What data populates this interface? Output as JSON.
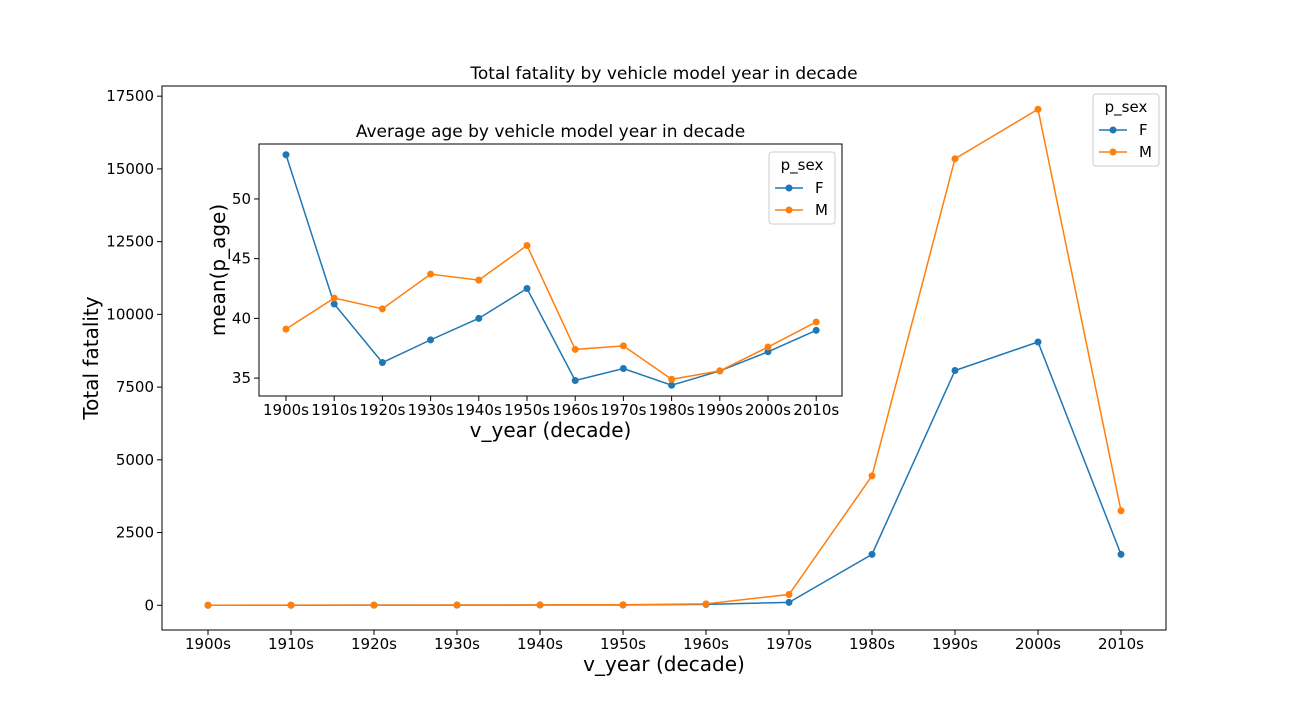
{
  "colors": {
    "F": "#1f77b4",
    "M": "#ff7f0e"
  },
  "chart_data": [
    {
      "type": "line",
      "title": "Total fatality by vehicle model year in decade",
      "xlabel": "v_year (decade)",
      "ylabel": "Total fatality",
      "categories": [
        "1900s",
        "1910s",
        "1920s",
        "1930s",
        "1940s",
        "1950s",
        "1960s",
        "1970s",
        "1980s",
        "1990s",
        "2000s",
        "2010s"
      ],
      "yticks": [
        0,
        2500,
        5000,
        7500,
        10000,
        12500,
        15000,
        17500
      ],
      "ylim": [
        -850,
        17850
      ],
      "legend": {
        "title": "p_sex",
        "placement": "upper right"
      },
      "series": [
        {
          "name": "F",
          "values": [
            1,
            2,
            3,
            5,
            8,
            10,
            30,
            100,
            1750,
            8070,
            9050,
            1750
          ]
        },
        {
          "name": "M",
          "values": [
            2,
            4,
            6,
            8,
            12,
            18,
            50,
            370,
            4450,
            15350,
            17050,
            3250
          ]
        }
      ]
    },
    {
      "type": "line",
      "title": "Average age by vehicle model year in decade",
      "xlabel": "v_year (decade)",
      "ylabel": "mean(p_age)",
      "categories": [
        "1900s",
        "1910s",
        "1920s",
        "1930s",
        "1940s",
        "1950s",
        "1960s",
        "1970s",
        "1980s",
        "1990s",
        "2000s",
        "2010s"
      ],
      "yticks": [
        35,
        40,
        45,
        50
      ],
      "ylim": [
        33.5,
        54.6
      ],
      "legend": {
        "title": "p_sex",
        "placement": "upper right"
      },
      "series": [
        {
          "name": "F",
          "values": [
            53.7,
            41.2,
            36.3,
            38.2,
            40.0,
            42.5,
            34.8,
            35.8,
            34.4,
            35.6,
            37.2,
            39.0
          ]
        },
        {
          "name": "M",
          "values": [
            39.1,
            41.7,
            40.8,
            43.7,
            43.2,
            46.1,
            37.4,
            37.7,
            34.9,
            35.6,
            37.6,
            39.7
          ]
        }
      ]
    }
  ]
}
